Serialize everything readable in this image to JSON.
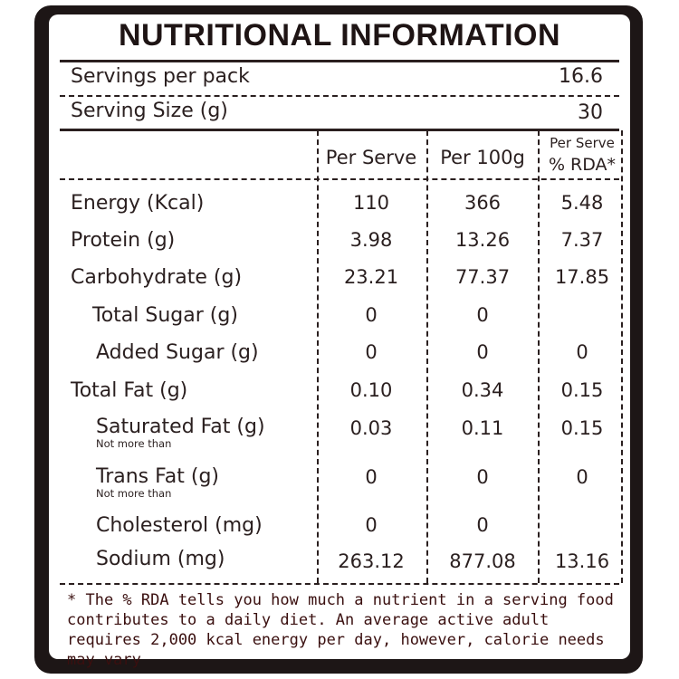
{
  "title": "NUTRITIONAL INFORMATION",
  "servings_per_pack": {
    "label": "Servings per pack",
    "value": "16.6"
  },
  "serving_size": {
    "label": "Serving Size (g)",
    "value": "30"
  },
  "columns": {
    "per_serve": "Per Serve",
    "per_100g": "Per 100g",
    "rda_top": "Per Serve",
    "rda_bottom": "% RDA*"
  },
  "rows": [
    {
      "label": "Energy (Kcal)",
      "per_serve": "110",
      "per_100g": "366",
      "rda": "5.48"
    },
    {
      "label": "Protein (g)",
      "per_serve": "3.98",
      "per_100g": "13.26",
      "rda": "7.37"
    },
    {
      "label": "Carbohydrate (g)",
      "per_serve": "23.21",
      "per_100g": "77.37",
      "rda": "17.85"
    },
    {
      "label": "Total Sugar (g)",
      "per_serve": "0",
      "per_100g": "0",
      "rda": ""
    },
    {
      "label": "Added Sugar (g)",
      "per_serve": "0",
      "per_100g": "0",
      "rda": "0"
    },
    {
      "label": "Total Fat (g)",
      "per_serve": "0.10",
      "per_100g": "0.34",
      "rda": "0.15"
    },
    {
      "label": "Saturated Fat (g)",
      "note": "Not more than",
      "per_serve": "0.03",
      "per_100g": "0.11",
      "rda": "0.15"
    },
    {
      "label": "Trans Fat (g)",
      "note": "Not more than",
      "per_serve": "0",
      "per_100g": "0",
      "rda": "0"
    },
    {
      "label": "Cholesterol (mg)",
      "per_serve": "0",
      "per_100g": "0",
      "rda": ""
    },
    {
      "label": "Sodium (mg)",
      "per_serve": "263.12",
      "per_100g": "877.08",
      "rda": "13.16"
    }
  ],
  "footnote": "* The % RDA tells you how much a nutrient in a serving food contributes to a daily diet. An average active adult requires 2,000 kcal energy per day, however, calorie needs may vary"
}
